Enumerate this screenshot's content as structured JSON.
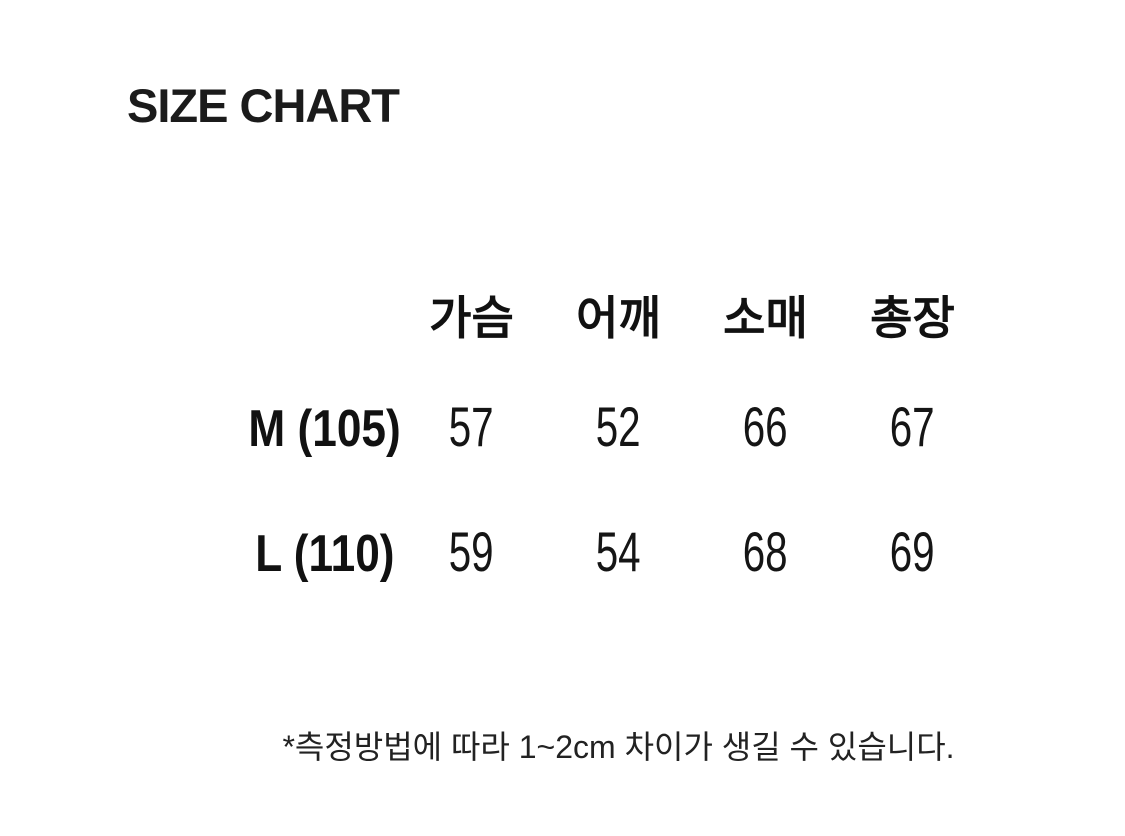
{
  "page": {
    "title": "SIZE CHART"
  },
  "colors": {
    "background": "#ffffff",
    "text": "#1b1b1b"
  },
  "chart_data": {
    "type": "table",
    "title": "SIZE CHART",
    "columns": [
      "가슴",
      "어깨",
      "소매",
      "총장"
    ],
    "rows": [
      {
        "label": "M (105)",
        "values": [
          "57",
          "52",
          "66",
          "67"
        ]
      },
      {
        "label": "L (110)",
        "values": [
          "59",
          "54",
          "68",
          "69"
        ]
      }
    ],
    "footnote": "*측정방법에 따라 1~2cm 차이가 생길 수 있습니다."
  }
}
